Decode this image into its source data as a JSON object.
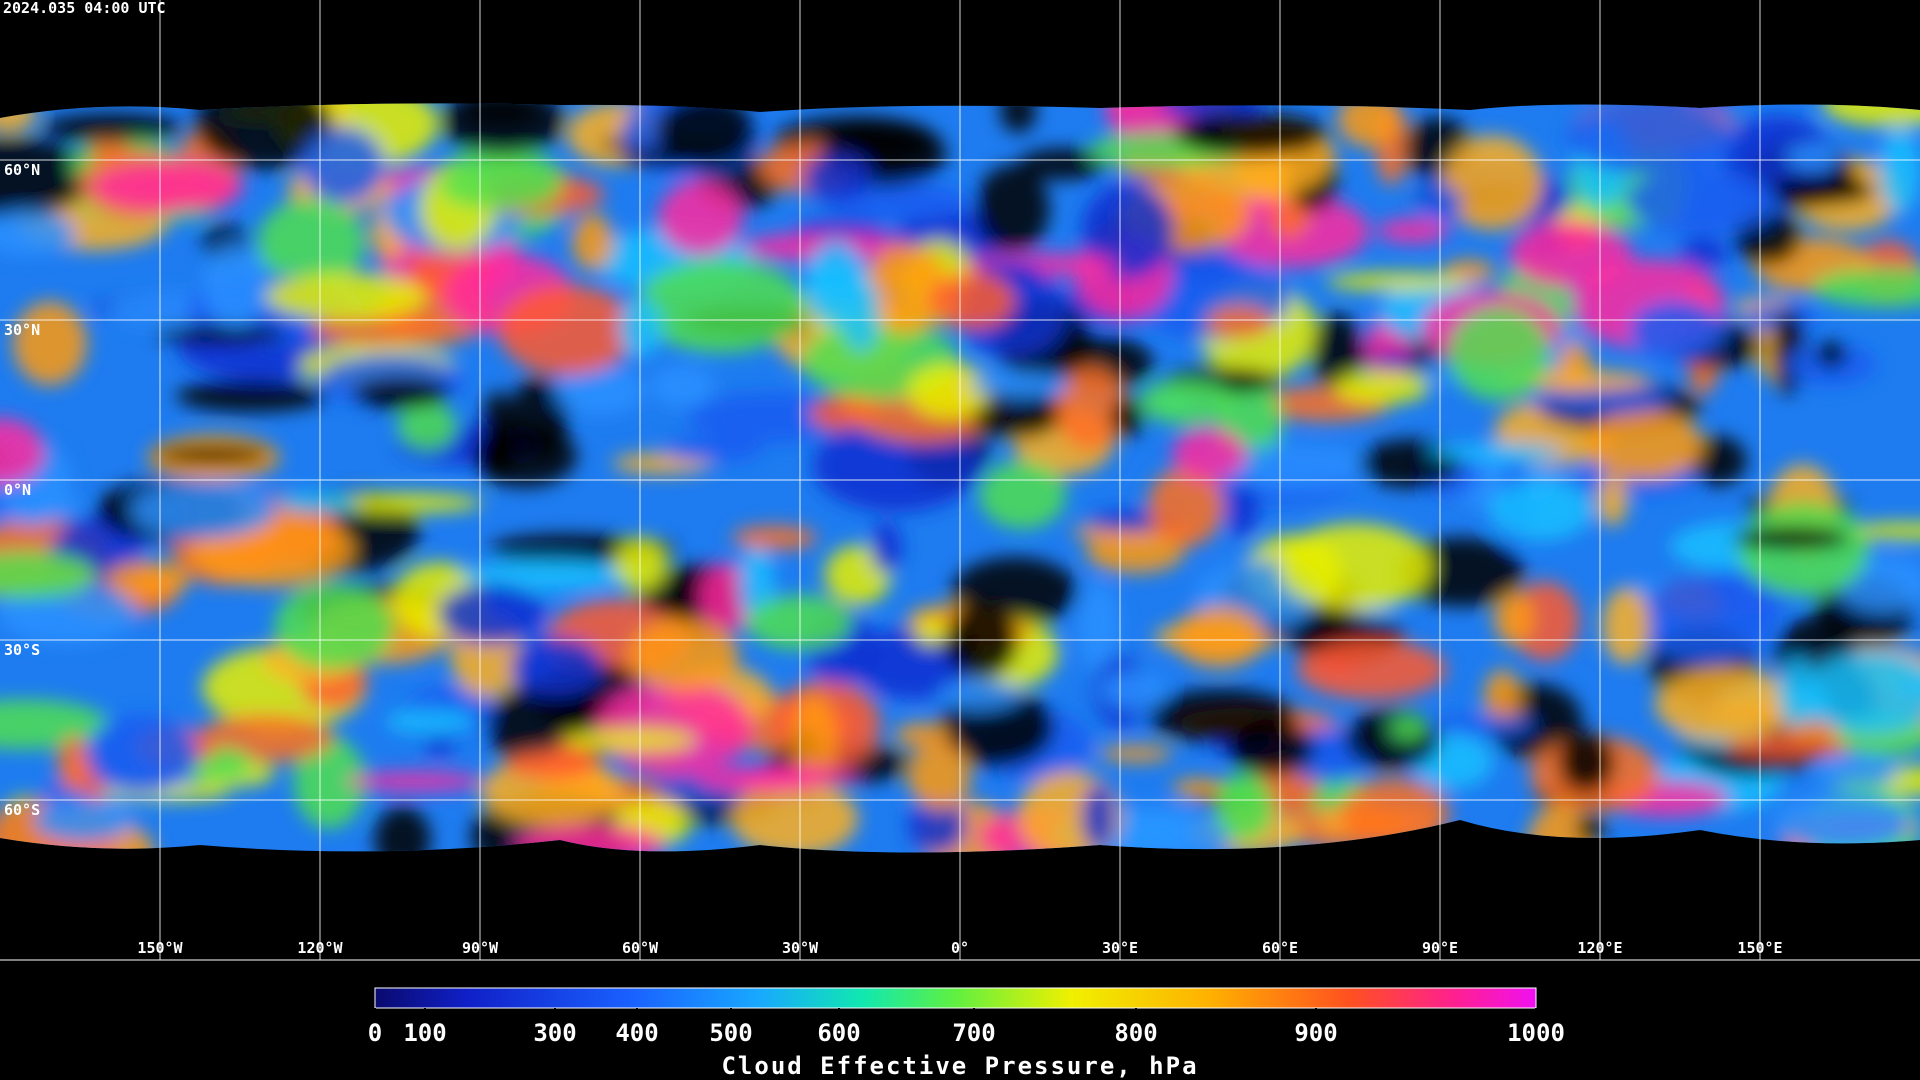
{
  "header": {
    "timestamp": "2024.035 04:00 UTC"
  },
  "map": {
    "latitude_labels": [
      "60°N",
      "30°N",
      "0°N",
      "30°S",
      "60°S"
    ],
    "longitude_labels": [
      "150°W",
      "120°W",
      "90°W",
      "60°W",
      "30°W",
      "0°",
      "30°E",
      "60°E",
      "90°E",
      "120°E",
      "150°E"
    ]
  },
  "colorbar": {
    "ticks": [
      0,
      100,
      300,
      400,
      500,
      600,
      700,
      800,
      900,
      1000
    ],
    "label": "Cloud Effective Pressure, hPa"
  }
}
